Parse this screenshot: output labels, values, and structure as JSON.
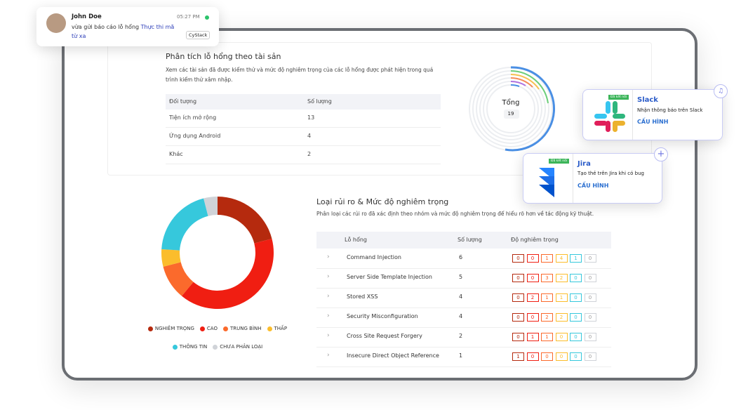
{
  "notification": {
    "name": "John Doe",
    "time": "05:27 PM",
    "message": "vừa gửi báo cáo lỗ hổng",
    "link": "Thực thi mã từ xa",
    "badge": "CyStack"
  },
  "assets": {
    "title": "Phân tích lỗ hổng theo tài sản",
    "description": "Xem các tài sản đã được kiểm thử và mức độ nghiêm trọng của các lỗ hổng được phát hiện trong quá trình kiểm thử xâm nhập.",
    "headers": [
      "Đối tượng",
      "Số lượng"
    ],
    "rows": [
      [
        "Tiện ích mở rộng",
        13
      ],
      [
        "Ứng dụng Android",
        4
      ],
      [
        "Khác",
        2
      ]
    ],
    "total_label": "Tổng",
    "total": 19
  },
  "slack": {
    "tag": "Đã kết nối",
    "name": "Slack",
    "description": "Nhận thông báo trên Slack",
    "action": "CẤU HÌNH"
  },
  "jira": {
    "tag": "Đã kết nối",
    "name": "Jira",
    "description": "Tạo thẻ trên Jira khi có bug",
    "action": "CẤU HÌNH"
  },
  "risk": {
    "title": "Loại rủi ro & Mức độ nghiêm trọng",
    "description": "Phân loại các rủi ro đã xác định theo nhóm và mức độ nghiêm trọng để hiểu rõ hơn về tác động kỹ thuật.",
    "headers": [
      "Lỗ hổng",
      "Số lượng",
      "Độ nghiêm trọng"
    ],
    "rows": [
      {
        "name": "Command Injection",
        "count": 6,
        "severity": [
          0,
          0,
          1,
          4,
          1,
          0
        ]
      },
      {
        "name": "Server Side Template Injection",
        "count": 5,
        "severity": [
          0,
          0,
          3,
          2,
          0,
          0
        ]
      },
      {
        "name": "Stored XSS",
        "count": 4,
        "severity": [
          0,
          2,
          1,
          1,
          0,
          0
        ]
      },
      {
        "name": "Security Misconfiguration",
        "count": 4,
        "severity": [
          0,
          0,
          2,
          2,
          0,
          0
        ]
      },
      {
        "name": "Cross Site Request Forgery",
        "count": 2,
        "severity": [
          0,
          1,
          1,
          0,
          0,
          0
        ]
      },
      {
        "name": "Insecure Direct Object Reference",
        "count": 1,
        "severity": [
          1,
          0,
          0,
          0,
          0,
          0
        ]
      }
    ]
  },
  "chart_data": {
    "type": "donut",
    "categories": [
      "NGHIÊM TRỌNG",
      "CAO",
      "TRUNG BÌNH",
      "THẤP",
      "THÔNG TIN",
      "CHƯA PHÂN LOẠI"
    ],
    "values": [
      21,
      40,
      10,
      5,
      20,
      4
    ],
    "colors": [
      "#b52a0e",
      "#f01e12",
      "#fb6a2c",
      "#fbbd2c",
      "#36c8dc",
      "#d0d3d8"
    ]
  }
}
